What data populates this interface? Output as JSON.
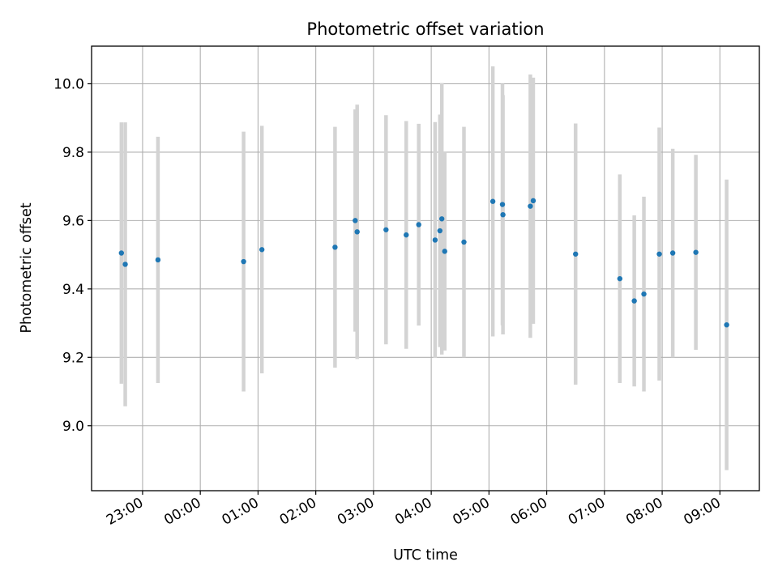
{
  "chart_data": {
    "type": "scatter",
    "title": "Photometric offset variation",
    "xlabel": "UTC time",
    "ylabel": "Photometric offset",
    "x_axis": {
      "kind": "time",
      "start": "2000-01-01T22:07:00",
      "end": "2000-01-02T09:41:00",
      "ticks": [
        {
          "t": "2000-01-01T23:00:00",
          "label": "23:00"
        },
        {
          "t": "2000-01-02T00:00:00",
          "label": "00:00"
        },
        {
          "t": "2000-01-02T01:00:00",
          "label": "01:00"
        },
        {
          "t": "2000-01-02T02:00:00",
          "label": "02:00"
        },
        {
          "t": "2000-01-02T03:00:00",
          "label": "03:00"
        },
        {
          "t": "2000-01-02T04:00:00",
          "label": "04:00"
        },
        {
          "t": "2000-01-02T05:00:00",
          "label": "05:00"
        },
        {
          "t": "2000-01-02T06:00:00",
          "label": "06:00"
        },
        {
          "t": "2000-01-02T07:00:00",
          "label": "07:00"
        },
        {
          "t": "2000-01-02T08:00:00",
          "label": "08:00"
        },
        {
          "t": "2000-01-02T09:00:00",
          "label": "09:00"
        }
      ]
    },
    "ylim": [
      8.81,
      10.11
    ],
    "yticks": [
      9.0,
      9.2,
      9.4,
      9.6,
      9.8,
      10.0
    ],
    "ytick_labels": [
      "9.0",
      "9.2",
      "9.4",
      "9.6",
      "9.8",
      "10.0"
    ],
    "grid": true,
    "point_color": "#1f77b4",
    "errorbar_color": "#d3d3d3",
    "points": [
      {
        "t": "2000-01-01T22:38:00",
        "y": 9.505,
        "err": 0.382
      },
      {
        "t": "2000-01-01T22:42:00",
        "y": 9.472,
        "err": 0.415
      },
      {
        "t": "2000-01-01T23:16:00",
        "y": 9.485,
        "err": 0.36
      },
      {
        "t": "2000-01-02T00:45:00",
        "y": 9.48,
        "err": 0.38
      },
      {
        "t": "2000-01-02T01:04:00",
        "y": 9.515,
        "err": 0.362
      },
      {
        "t": "2000-01-02T02:20:00",
        "y": 9.522,
        "err": 0.352
      },
      {
        "t": "2000-01-02T02:41:00",
        "y": 9.6,
        "err": 0.325
      },
      {
        "t": "2000-01-02T02:43:00",
        "y": 9.567,
        "err": 0.372
      },
      {
        "t": "2000-01-02T03:13:00",
        "y": 9.573,
        "err": 0.335
      },
      {
        "t": "2000-01-02T03:34:00",
        "y": 9.558,
        "err": 0.333
      },
      {
        "t": "2000-01-02T03:47:00",
        "y": 9.588,
        "err": 0.295
      },
      {
        "t": "2000-01-02T04:04:00",
        "y": 9.543,
        "err": 0.345
      },
      {
        "t": "2000-01-02T04:09:00",
        "y": 9.57,
        "err": 0.34
      },
      {
        "t": "2000-01-02T04:11:00",
        "y": 9.605,
        "err": 0.397
      },
      {
        "t": "2000-01-02T04:14:00",
        "y": 9.51,
        "err": 0.29
      },
      {
        "t": "2000-01-02T04:34:00",
        "y": 9.537,
        "err": 0.337
      },
      {
        "t": "2000-01-02T05:04:00",
        "y": 9.656,
        "err": 0.395
      },
      {
        "t": "2000-01-02T05:14:00",
        "y": 9.647,
        "err": 0.353
      },
      {
        "t": "2000-01-02T05:14:30",
        "y": 9.617,
        "err": 0.35
      },
      {
        "t": "2000-01-02T05:43:00",
        "y": 9.642,
        "err": 0.385
      },
      {
        "t": "2000-01-02T05:46:00",
        "y": 9.658,
        "err": 0.36
      },
      {
        "t": "2000-01-02T06:30:00",
        "y": 9.502,
        "err": 0.382
      },
      {
        "t": "2000-01-02T07:16:00",
        "y": 9.43,
        "err": 0.305
      },
      {
        "t": "2000-01-02T07:31:00",
        "y": 9.365,
        "err": 0.25
      },
      {
        "t": "2000-01-02T07:41:00",
        "y": 9.385,
        "err": 0.285
      },
      {
        "t": "2000-01-02T07:57:00",
        "y": 9.502,
        "err": 0.37
      },
      {
        "t": "2000-01-02T08:11:00",
        "y": 9.505,
        "err": 0.305
      },
      {
        "t": "2000-01-02T08:35:00",
        "y": 9.507,
        "err": 0.285
      },
      {
        "t": "2000-01-02T09:07:00",
        "y": 9.295,
        "err": 0.425
      }
    ]
  }
}
